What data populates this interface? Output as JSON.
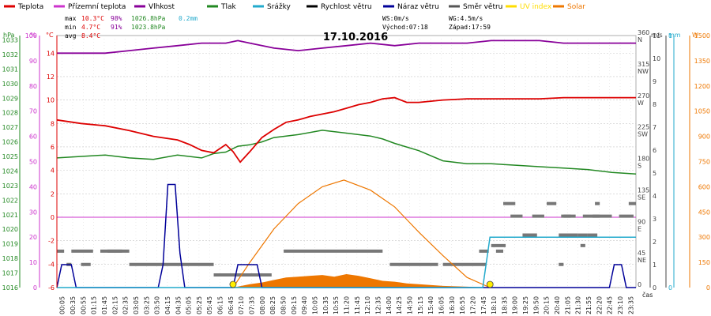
{
  "chart_data": {
    "type": "line",
    "title": "17.10.2016",
    "xlabel": "čas",
    "legend": [
      {
        "key": "temp",
        "label": "Teplota",
        "color": "#dd0000"
      },
      {
        "key": "apparent",
        "label": "Přízemní teplota",
        "color": "#cc33cc"
      },
      {
        "key": "humidity",
        "label": "Vlhkost",
        "color": "#880099"
      },
      {
        "key": "pressure",
        "label": "Tlak",
        "color": "#228822"
      },
      {
        "key": "rain",
        "label": "Srážky",
        "color": "#22aacc"
      },
      {
        "key": "wind",
        "label": "Rychlost větru",
        "color": "#000000"
      },
      {
        "key": "gust",
        "label": "Náraz větru",
        "color": "#000099"
      },
      {
        "key": "dir",
        "label": "Směr větru",
        "color": "#555555"
      },
      {
        "key": "uv",
        "label": "UV index",
        "color": "#ffdd00"
      },
      {
        "key": "solar",
        "label": "Solar",
        "color": "#ee7700"
      }
    ],
    "stats": {
      "max": {
        "label": "max",
        "temp": "10.3°C",
        "hum": "98%",
        "press": "1026.8hPa",
        "rain": "0.2mm"
      },
      "min": {
        "label": "min",
        "temp": "4.7°C",
        "hum": "91%",
        "press": "1023.8hPa"
      },
      "avg": {
        "label": "avg",
        "temp": "8.4°C"
      }
    },
    "info": {
      "ws": "WS:0m/s",
      "wg": "WG:4.5m/s",
      "sunrise": "Východ:07:18",
      "sunset": "Západ:17:59"
    },
    "axes": {
      "hpa": {
        "unit": "hPa",
        "ticks": [
          "1016",
          "1017",
          "1018",
          "1019",
          "1020",
          "1021",
          "1022",
          "1023",
          "1024",
          "1025",
          "1026",
          "1027",
          "1028",
          "1029",
          "1030",
          "1031",
          "1032",
          "1033"
        ],
        "range": [
          1016,
          1033.3
        ]
      },
      "pct": {
        "unit": "%",
        "ticks": [
          "0",
          "10",
          "20",
          "30",
          "40",
          "50",
          "60",
          "70",
          "80",
          "90",
          "100"
        ],
        "range": [
          0,
          100
        ]
      },
      "celsius": {
        "unit": "°C",
        "ticks": [
          "-6",
          "-4",
          "-2",
          "0",
          "2",
          "4",
          "6",
          "8",
          "10",
          "12",
          "14"
        ],
        "range": [
          -6,
          15.5
        ]
      },
      "deg": {
        "ticks": [
          "0",
          "45",
          "90",
          "135",
          "180",
          "225",
          "270",
          "315",
          "360"
        ],
        "range": [
          0,
          360
        ]
      },
      "dirlab": {
        "ticks": [
          "",
          "NE",
          "E",
          "SE",
          "S",
          "SW",
          "W",
          "NW",
          "N"
        ]
      },
      "ms": {
        "unit": "m/s",
        "ticks": [
          "0",
          "1",
          "2",
          "3",
          "4",
          "5",
          "6",
          "7",
          "8",
          "9",
          "10",
          "11"
        ],
        "range": [
          0,
          11
        ]
      },
      "mm": {
        "unit": "mm",
        "ticks": [
          "0",
          "1"
        ],
        "range": [
          0,
          1
        ]
      },
      "w": {
        "unit": "W",
        "ticks": [
          "0",
          "150",
          "300",
          "450",
          "600",
          "750",
          "900",
          "1050",
          "1200",
          "1350",
          "1500"
        ],
        "range": [
          0,
          1500
        ]
      },
      "time": {
        "ticks": [
          "00:05",
          "00:35",
          "00:55",
          "01:15",
          "01:45",
          "02:15",
          "02:35",
          "03:05",
          "03:25",
          "03:50",
          "04:15",
          "04:35",
          "05:05",
          "05:25",
          "05:45",
          "06:15",
          "06:45",
          "07:10",
          "07:35",
          "08:00",
          "08:25",
          "08:50",
          "09:15",
          "09:40",
          "10:05",
          "10:35",
          "10:55",
          "11:20",
          "11:45",
          "12:10",
          "12:35",
          "14:00",
          "14:25",
          "14:50",
          "15:15",
          "15:40",
          "16:05",
          "16:30",
          "16:55",
          "17:20",
          "17:45",
          "18:10",
          "18:35",
          "19:00",
          "19:25",
          "19:50",
          "20:15",
          "20:40",
          "21:05",
          "21:30",
          "21:55",
          "22:20",
          "22:45",
          "23:10",
          "23:35"
        ]
      }
    },
    "series": {
      "temp": [
        [
          0,
          8.3
        ],
        [
          1,
          8.0
        ],
        [
          2,
          7.8
        ],
        [
          3,
          7.4
        ],
        [
          4,
          6.9
        ],
        [
          5,
          6.6
        ],
        [
          5.5,
          6.2
        ],
        [
          6,
          5.7
        ],
        [
          6.5,
          5.5
        ],
        [
          7,
          6.2
        ],
        [
          7.3,
          5.6
        ],
        [
          7.6,
          4.7
        ],
        [
          8,
          5.6
        ],
        [
          8.5,
          6.8
        ],
        [
          9,
          7.5
        ],
        [
          9.5,
          8.1
        ],
        [
          10,
          8.3
        ],
        [
          10.5,
          8.6
        ],
        [
          11,
          8.8
        ],
        [
          11.5,
          9.0
        ],
        [
          12,
          9.3
        ],
        [
          12.5,
          9.6
        ],
        [
          13,
          9.8
        ],
        [
          13.5,
          10.1
        ],
        [
          14,
          10.2
        ],
        [
          14.5,
          9.8
        ],
        [
          15,
          9.8
        ],
        [
          15.5,
          9.9
        ],
        [
          16,
          10.0
        ],
        [
          17,
          10.1
        ],
        [
          18,
          10.1
        ],
        [
          19,
          10.1
        ],
        [
          20,
          10.1
        ],
        [
          21,
          10.2
        ],
        [
          22,
          10.2
        ],
        [
          23,
          10.2
        ],
        [
          24,
          10.2
        ]
      ],
      "humidity": [
        [
          0,
          93
        ],
        [
          2,
          93
        ],
        [
          3,
          94
        ],
        [
          4,
          95
        ],
        [
          5,
          96
        ],
        [
          6,
          97
        ],
        [
          7,
          97
        ],
        [
          7.5,
          98
        ],
        [
          8,
          97
        ],
        [
          9,
          95
        ],
        [
          10,
          94
        ],
        [
          11,
          95
        ],
        [
          12,
          96
        ],
        [
          13,
          97
        ],
        [
          14,
          96
        ],
        [
          15,
          97
        ],
        [
          16,
          97
        ],
        [
          17,
          97
        ],
        [
          18,
          98
        ],
        [
          19,
          98
        ],
        [
          20,
          98
        ],
        [
          21,
          97
        ],
        [
          22,
          97
        ],
        [
          23,
          97
        ],
        [
          24,
          97
        ]
      ],
      "pressure": [
        [
          0,
          1024.9
        ],
        [
          2,
          1025.1
        ],
        [
          3,
          1024.9
        ],
        [
          4,
          1024.8
        ],
        [
          5,
          1025.1
        ],
        [
          6,
          1024.9
        ],
        [
          6.5,
          1025.2
        ],
        [
          7,
          1025.3
        ],
        [
          7.5,
          1025.7
        ],
        [
          8,
          1025.8
        ],
        [
          8.5,
          1026.0
        ],
        [
          9,
          1026.3
        ],
        [
          10,
          1026.5
        ],
        [
          11,
          1026.8
        ],
        [
          12,
          1026.6
        ],
        [
          13,
          1026.4
        ],
        [
          13.5,
          1026.2
        ],
        [
          14,
          1025.9
        ],
        [
          15,
          1025.4
        ],
        [
          16,
          1024.7
        ],
        [
          17,
          1024.5
        ],
        [
          18,
          1024.5
        ],
        [
          19,
          1024.4
        ],
        [
          20,
          1024.3
        ],
        [
          21,
          1024.2
        ],
        [
          22,
          1024.1
        ],
        [
          23,
          1023.9
        ],
        [
          24,
          1023.8
        ]
      ],
      "apparent_const": 0,
      "gust": [
        [
          0,
          0
        ],
        [
          0.2,
          1.0
        ],
        [
          0.6,
          1.0
        ],
        [
          0.8,
          0
        ],
        [
          4.2,
          0
        ],
        [
          4.4,
          1.0
        ],
        [
          4.6,
          4.5
        ],
        [
          4.9,
          4.5
        ],
        [
          5.1,
          1.5
        ],
        [
          5.3,
          0
        ],
        [
          7.3,
          0
        ],
        [
          7.5,
          1.0
        ],
        [
          8.3,
          1.0
        ],
        [
          8.5,
          0
        ],
        [
          22.9,
          0
        ],
        [
          23.1,
          1.0
        ],
        [
          23.4,
          1.0
        ],
        [
          23.6,
          0
        ],
        [
          24,
          0
        ]
      ],
      "rain": [
        [
          0,
          0
        ],
        [
          17.65,
          0
        ],
        [
          17.95,
          0.2
        ],
        [
          24,
          0.2
        ]
      ],
      "solar": [
        [
          7.3,
          0
        ],
        [
          8,
          150
        ],
        [
          9,
          350
        ],
        [
          10,
          500
        ],
        [
          11,
          600
        ],
        [
          11.9,
          640
        ],
        [
          13,
          580
        ],
        [
          14,
          480
        ],
        [
          15,
          330
        ],
        [
          16,
          190
        ],
        [
          17,
          60
        ],
        [
          17.95,
          0
        ]
      ],
      "solar_fill": [
        [
          7.3,
          0
        ],
        [
          8,
          20
        ],
        [
          8.5,
          30
        ],
        [
          9,
          45
        ],
        [
          9.5,
          60
        ],
        [
          10,
          65
        ],
        [
          10.5,
          70
        ],
        [
          11,
          75
        ],
        [
          11.5,
          65
        ],
        [
          12,
          80
        ],
        [
          12.5,
          70
        ],
        [
          13,
          55
        ],
        [
          13.5,
          40
        ],
        [
          14,
          35
        ],
        [
          14.5,
          25
        ],
        [
          15,
          20
        ],
        [
          16,
          10
        ],
        [
          17,
          5
        ],
        [
          17.95,
          0
        ]
      ],
      "sun_markers": [
        7.3,
        17.95
      ],
      "dir_segments": [
        [
          0.0,
          0.3,
          52
        ],
        [
          0.6,
          1.5,
          52
        ],
        [
          1.8,
          3.0,
          52
        ],
        [
          2.1,
          2.7,
          52
        ],
        [
          0.4,
          0.6,
          33
        ],
        [
          1.0,
          1.4,
          33
        ],
        [
          3.0,
          5.2,
          33
        ],
        [
          5.2,
          6.5,
          33
        ],
        [
          6.5,
          8.9,
          18
        ],
        [
          9.4,
          13.5,
          52
        ],
        [
          13.8,
          15.8,
          33
        ],
        [
          16.0,
          17.8,
          33
        ],
        [
          17.5,
          17.9,
          52
        ],
        [
          18.2,
          18.5,
          52
        ],
        [
          18.8,
          19.3,
          102
        ],
        [
          19.7,
          20.2,
          102
        ],
        [
          21.0,
          21.5,
          102
        ],
        [
          20.9,
          21.3,
          102
        ],
        [
          21.8,
          22.5,
          102
        ],
        [
          22.2,
          23.0,
          102
        ],
        [
          23.3,
          23.9,
          102
        ],
        [
          18.5,
          19.0,
          120
        ],
        [
          20.3,
          20.7,
          120
        ],
        [
          22.3,
          22.5,
          120
        ],
        [
          23.7,
          24.0,
          120
        ],
        [
          19.3,
          19.9,
          75
        ],
        [
          20.8,
          21.6,
          75
        ],
        [
          21.6,
          22.0,
          75
        ],
        [
          22.0,
          22.4,
          75
        ],
        [
          20.8,
          21.0,
          33
        ],
        [
          21.7,
          21.9,
          60
        ],
        [
          18.0,
          18.6,
          60
        ]
      ]
    }
  }
}
